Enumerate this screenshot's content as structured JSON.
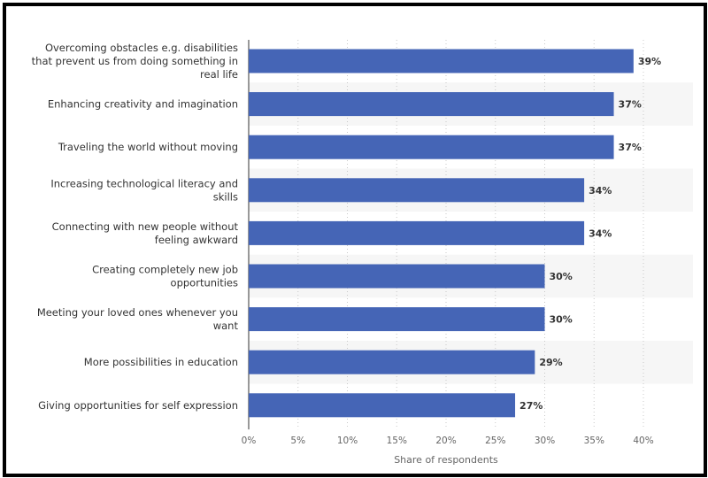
{
  "chart_data": {
    "type": "bar",
    "orientation": "horizontal",
    "categories": [
      [
        "Overcoming obstacles e.g. disabilities",
        "that prevent us from doing something in",
        "real life"
      ],
      [
        "Enhancing creativity and imagination"
      ],
      [
        "Traveling the world without moving"
      ],
      [
        "Increasing technological literacy and",
        "skills"
      ],
      [
        "Connecting with new people without",
        "feeling awkward"
      ],
      [
        "Creating completely new job",
        "opportunities"
      ],
      [
        "Meeting your loved ones whenever you",
        "want"
      ],
      [
        "More possibilities in education"
      ],
      [
        "Giving opportunities for self expression"
      ]
    ],
    "values": [
      39,
      37,
      37,
      34,
      34,
      30,
      30,
      29,
      27
    ],
    "value_labels": [
      "39%",
      "37%",
      "37%",
      "34%",
      "34%",
      "30%",
      "30%",
      "29%",
      "27%"
    ],
    "xlim": [
      0,
      40
    ],
    "x_ticks": [
      0,
      5,
      10,
      15,
      20,
      25,
      30,
      35,
      40
    ],
    "x_tick_labels": [
      "0%",
      "5%",
      "10%",
      "15%",
      "20%",
      "25%",
      "30%",
      "35%",
      "40%"
    ],
    "xlabel": "Share of respondents",
    "title": "",
    "grid": "vertical-dotted",
    "bar_color": "#4565b6",
    "band_color": "#f6f6f6"
  }
}
